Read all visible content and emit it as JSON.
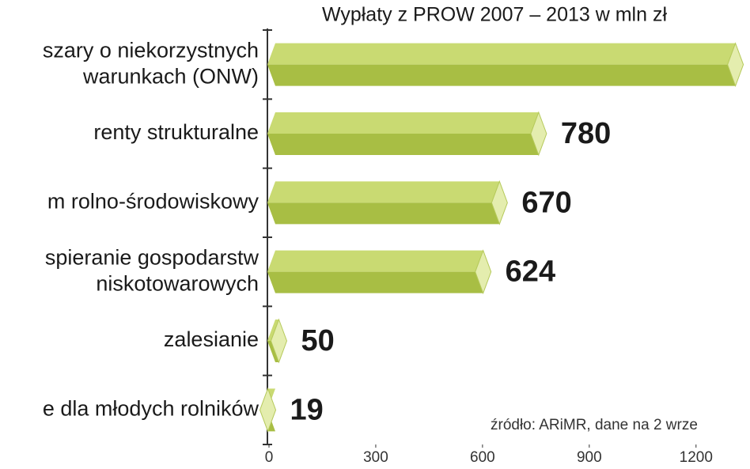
{
  "chart_data": {
    "type": "bar",
    "orientation": "horizontal",
    "title": "Wypłaty z PROW 2007 – 2013 w mln zł",
    "source": "źródło: ARiMR, dane na 2 wrze",
    "categories": [
      [
        "szary o niekorzystnych",
        "warunkach (ONW)"
      ],
      [
        "renty strukturalne"
      ],
      [
        "m rolno-środowiskowy"
      ],
      [
        "spieranie gospodarstw",
        "niskotowarowych"
      ],
      [
        "zalesianie"
      ],
      [
        "e dla młodych rolników"
      ]
    ],
    "values": [
      1333,
      780,
      670,
      624,
      50,
      19
    ],
    "color": "#a8be44",
    "xlim": [
      0,
      1345
    ],
    "xticks": [
      0,
      300,
      600,
      900,
      1200
    ]
  }
}
